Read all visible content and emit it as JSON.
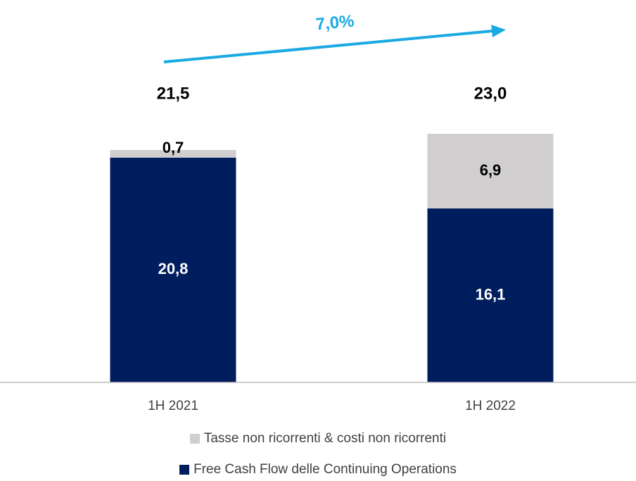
{
  "chart_data": {
    "type": "bar",
    "stacked": true,
    "categories": [
      "1H 2021",
      "1H 2022"
    ],
    "series": [
      {
        "name": "Free Cash Flow delle Continuing Operations",
        "values": [
          20.8,
          16.1
        ],
        "labels": [
          "20,8",
          "16,1"
        ],
        "color": "#001E5E",
        "label_color": "#ffffff"
      },
      {
        "name": "Tasse non ricorrenti & costi non ricorrenti",
        "values": [
          0.7,
          6.9
        ],
        "labels": [
          "0,7",
          "6,9"
        ],
        "color": "#D0CECE",
        "label_color": "#000000"
      }
    ],
    "totals": [
      "21,5",
      "23,0"
    ],
    "growth_label": "7,0%",
    "arrow_color": "#1AAAE2",
    "ylim": [
      0,
      23.0
    ],
    "grid": false,
    "legend_position": "bottom"
  }
}
